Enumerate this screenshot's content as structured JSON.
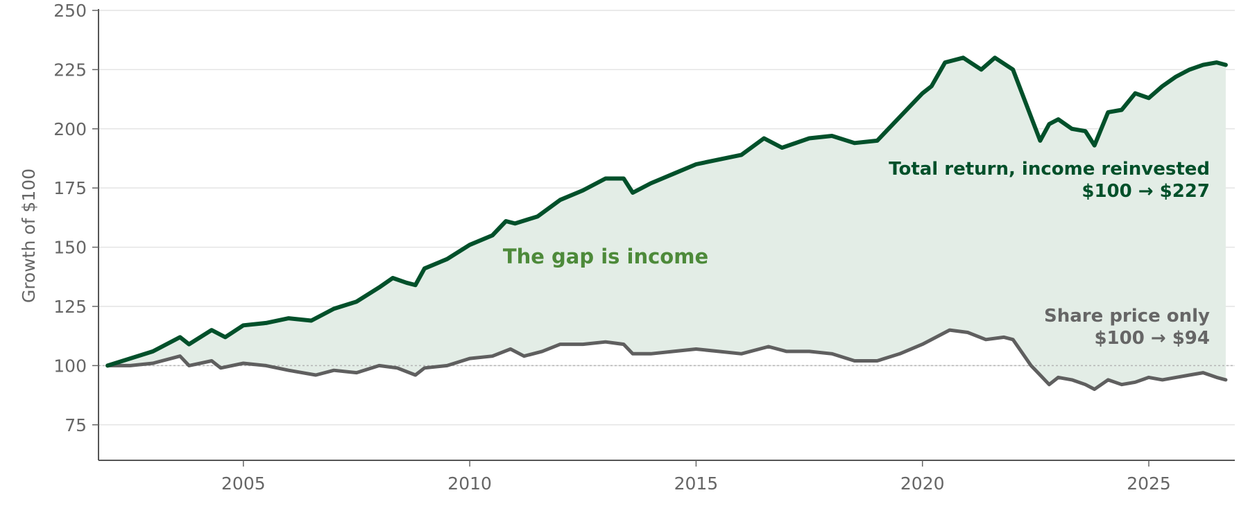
{
  "chart_data": {
    "type": "line",
    "title": "",
    "xlabel": "",
    "ylabel": "Growth of $100",
    "xlim": [
      2001.8,
      2026.9
    ],
    "ylim": [
      60,
      250
    ],
    "x_ticks": [
      "2005",
      "2010",
      "2015",
      "2020",
      "2025"
    ],
    "y_ticks": [
      "75",
      "100",
      "125",
      "150",
      "175",
      "200",
      "225",
      "250"
    ],
    "grid": "horizontal",
    "reference_line": 100,
    "legend": "none",
    "colors": {
      "total_return": "#00502a",
      "price_only": "#5f5f5f",
      "gap_fill": "#e3ede6",
      "gap_label": "#4d8a3a"
    },
    "series": [
      {
        "key": "total_return",
        "x": [
          2002.0,
          2002.5,
          2003.0,
          2003.6,
          2003.8,
          2004.3,
          2004.6,
          2005.0,
          2005.5,
          2006.0,
          2006.5,
          2007.0,
          2007.5,
          2008.0,
          2008.3,
          2008.6,
          2008.8,
          2009.0,
          2009.5,
          2010.0,
          2010.5,
          2010.8,
          2011.0,
          2011.5,
          2012.0,
          2012.5,
          2013.0,
          2013.4,
          2013.6,
          2014.0,
          2014.5,
          2015.0,
          2015.5,
          2016.0,
          2016.5,
          2016.9,
          2017.5,
          2018.0,
          2018.5,
          2019.0,
          2019.5,
          2020.0,
          2020.2,
          2020.5,
          2020.9,
          2021.3,
          2021.6,
          2022.0,
          2022.4,
          2022.6,
          2022.8,
          2023.0,
          2023.3,
          2023.6,
          2023.8,
          2024.1,
          2024.4,
          2024.7,
          2025.0,
          2025.3,
          2025.6,
          2025.9,
          2026.2,
          2026.5,
          2026.7
        ],
        "y": [
          100,
          103,
          106,
          112,
          109,
          115,
          112,
          117,
          118,
          120,
          119,
          124,
          127,
          133,
          137,
          135,
          134,
          141,
          145,
          151,
          155,
          161,
          160,
          163,
          170,
          174,
          179,
          179,
          173,
          177,
          181,
          185,
          187,
          189,
          196,
          192,
          196,
          197,
          194,
          195,
          205,
          215,
          218,
          228,
          230,
          225,
          230,
          225,
          205,
          195,
          202,
          204,
          200,
          199,
          193,
          207,
          208,
          215,
          213,
          218,
          222,
          225,
          227,
          228,
          227
        ]
      },
      {
        "key": "price_only",
        "x": [
          2002.0,
          2002.5,
          2003.0,
          2003.6,
          2003.8,
          2004.3,
          2004.5,
          2005.0,
          2005.5,
          2006.0,
          2006.6,
          2007.0,
          2007.5,
          2008.0,
          2008.4,
          2008.8,
          2009.0,
          2009.5,
          2010.0,
          2010.5,
          2010.9,
          2011.2,
          2011.6,
          2012.0,
          2012.5,
          2013.0,
          2013.4,
          2013.6,
          2014.0,
          2014.5,
          2015.0,
          2015.5,
          2016.0,
          2016.6,
          2017.0,
          2017.5,
          2018.0,
          2018.5,
          2019.0,
          2019.5,
          2020.0,
          2020.3,
          2020.6,
          2021.0,
          2021.4,
          2021.8,
          2022.0,
          2022.4,
          2022.6,
          2022.8,
          2023.0,
          2023.3,
          2023.6,
          2023.8,
          2024.1,
          2024.4,
          2024.7,
          2025.0,
          2025.3,
          2025.6,
          2025.9,
          2026.2,
          2026.5,
          2026.7
        ],
        "y": [
          100,
          100,
          101,
          104,
          100,
          102,
          99,
          101,
          100,
          98,
          96,
          98,
          97,
          100,
          99,
          96,
          99,
          100,
          103,
          104,
          107,
          104,
          106,
          109,
          109,
          110,
          109,
          105,
          105,
          106,
          107,
          106,
          105,
          108,
          106,
          106,
          105,
          102,
          102,
          105,
          109,
          112,
          115,
          114,
          111,
          112,
          111,
          100,
          96,
          92,
          95,
          94,
          92,
          90,
          94,
          92,
          93,
          95,
          94,
          95,
          96,
          97,
          95,
          94
        ]
      }
    ],
    "annotations": {
      "total_line1": "Total return, income reinvested",
      "total_line2": "$100 → $227",
      "price_line1": "Share price only",
      "price_line2": "$100 → $94",
      "gap": "The gap is income"
    }
  }
}
